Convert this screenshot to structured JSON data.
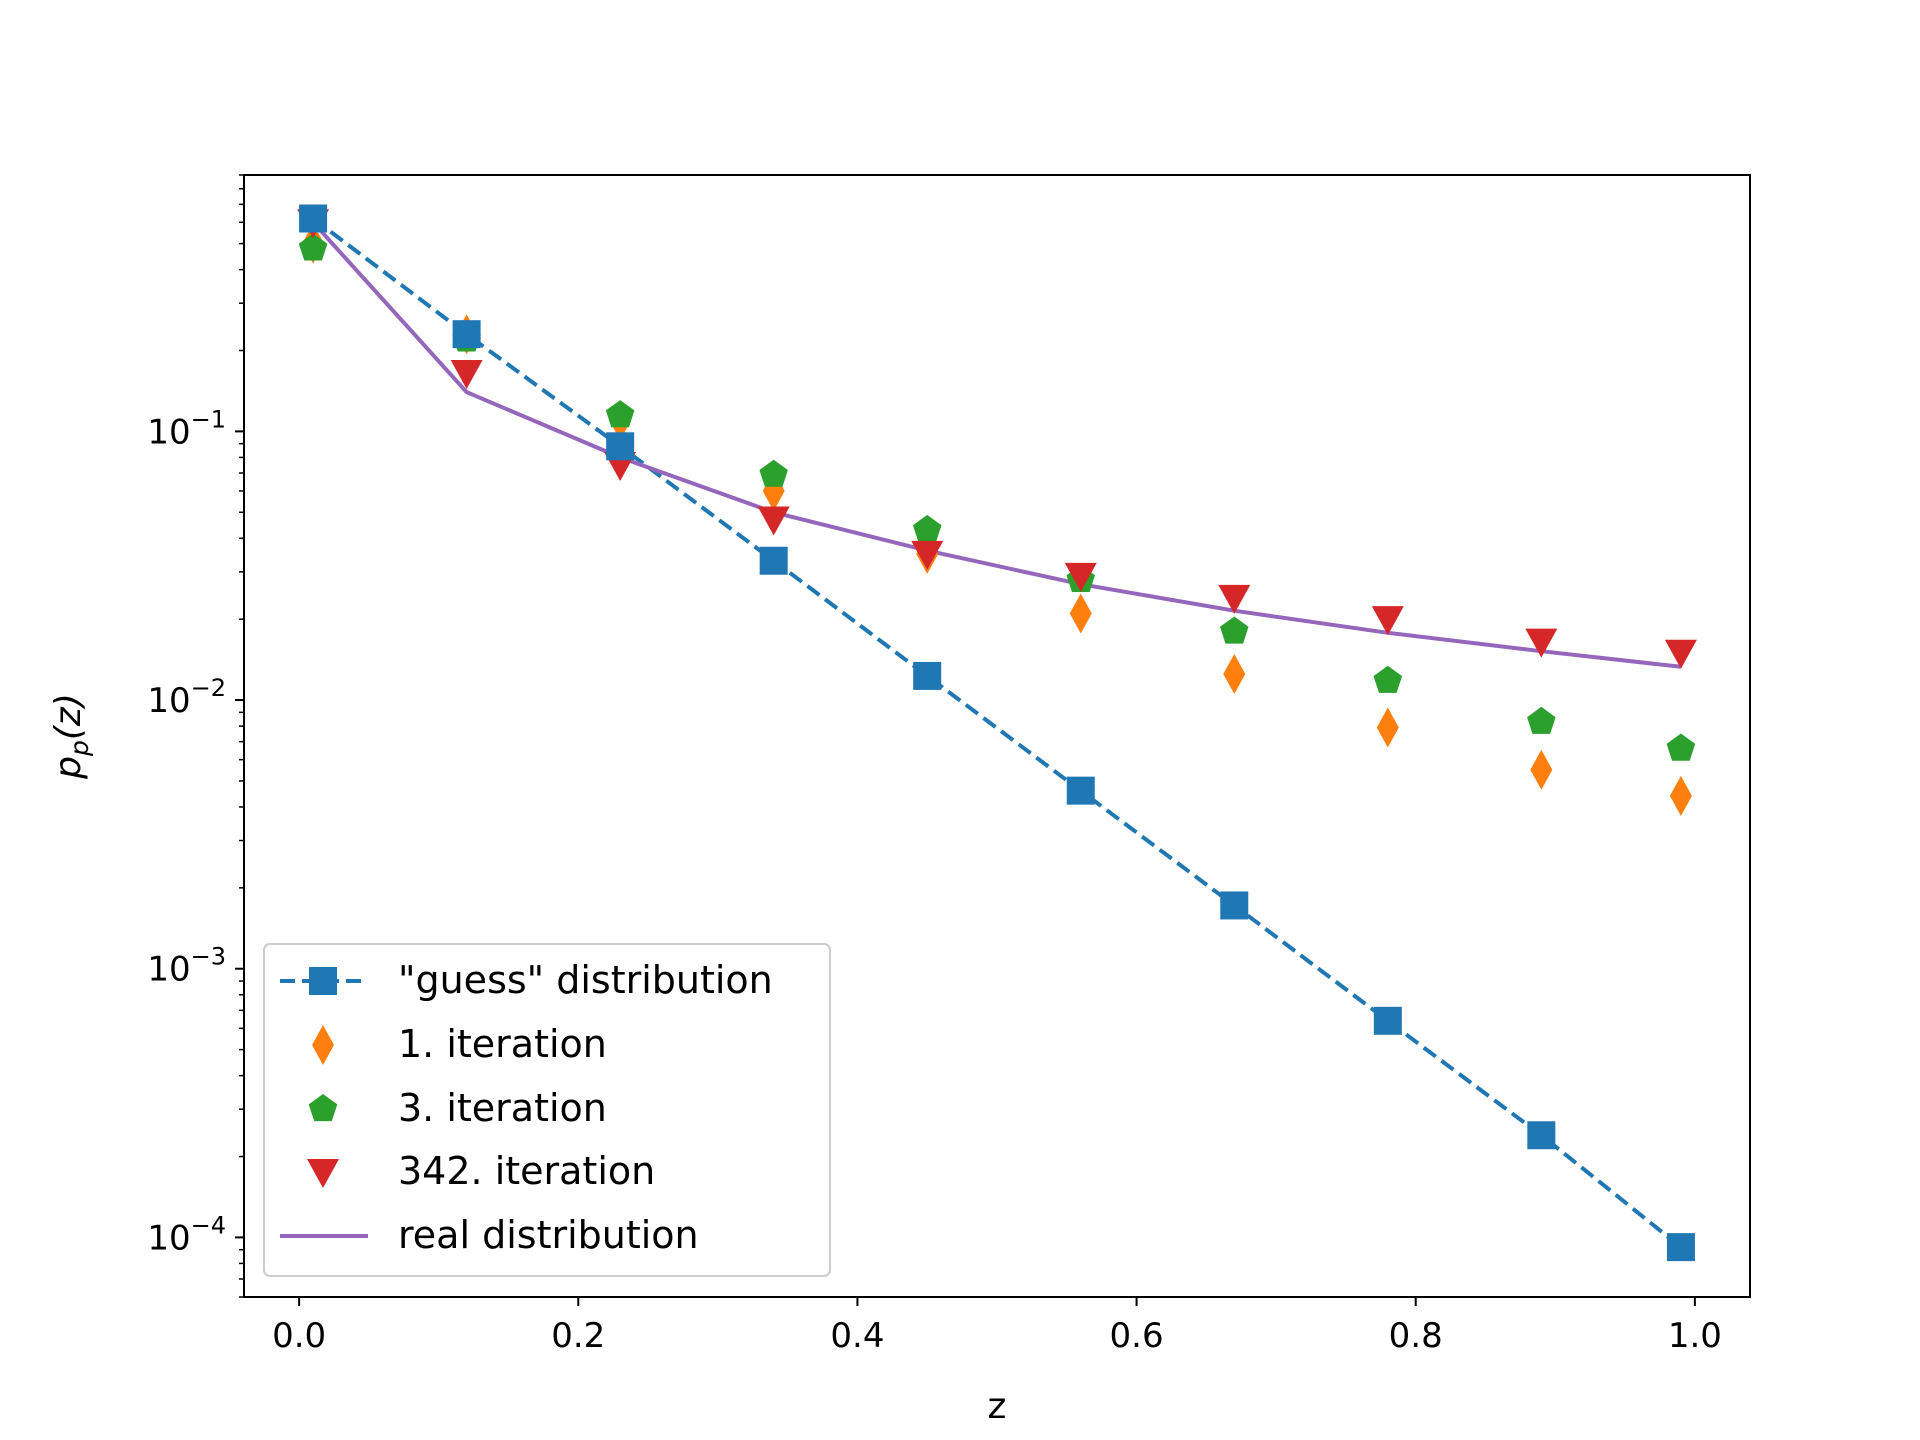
{
  "chart_data": {
    "type": "scatter",
    "xlabel": "z",
    "ylabel": "p_p(z)",
    "ylabel_main": "p",
    "ylabel_sub": "p",
    "ylabel_arg": "(z)",
    "yscale": "log",
    "xlim": [
      -0.0395,
      1.0395
    ],
    "ylim": [
      6e-05,
      0.9
    ],
    "x_ticks": [
      {
        "value": 0.0,
        "label": "0.0"
      },
      {
        "value": 0.2,
        "label": "0.2"
      },
      {
        "value": 0.4,
        "label": "0.4"
      },
      {
        "value": 0.6,
        "label": "0.6"
      },
      {
        "value": 0.8,
        "label": "0.8"
      },
      {
        "value": 1.0,
        "label": "1.0"
      }
    ],
    "y_ticks": [
      {
        "value": 0.1,
        "base": "10",
        "exp": "−1"
      },
      {
        "value": 0.01,
        "base": "10",
        "exp": "−2"
      },
      {
        "value": 0.001,
        "base": "10",
        "exp": "−3"
      },
      {
        "value": 0.0001,
        "base": "10",
        "exp": "−4"
      }
    ],
    "x": [
      0.01,
      0.12,
      0.23,
      0.34,
      0.45,
      0.56,
      0.67,
      0.78,
      0.89,
      0.99
    ],
    "series": [
      {
        "name": "\"guess\" distribution",
        "color": "#1f77b4",
        "marker": "square",
        "line": "dashed",
        "values": [
          0.62,
          0.23,
          0.088,
          0.033,
          0.0123,
          0.0046,
          0.00172,
          0.00064,
          0.00024,
          9.2e-05
        ]
      },
      {
        "name": "1. iteration",
        "color": "#ff7f0e",
        "marker": "diamond",
        "line": "none",
        "values": [
          0.5,
          0.23,
          0.11,
          0.06,
          0.035,
          0.021,
          0.0125,
          0.0079,
          0.0055,
          0.0044
        ]
      },
      {
        "name": "3. iteration",
        "color": "#2ca02c",
        "marker": "pentagon",
        "line": "none",
        "values": [
          0.48,
          0.22,
          0.115,
          0.069,
          0.043,
          0.028,
          0.018,
          0.0118,
          0.0083,
          0.0066
        ]
      },
      {
        "name": "342. iteration",
        "color": "#d62728",
        "marker": "triangle-down",
        "line": "none",
        "values": [
          0.6,
          0.165,
          0.075,
          0.047,
          0.035,
          0.029,
          0.024,
          0.02,
          0.0165,
          0.015
        ]
      },
      {
        "name": "real distribution",
        "color": "#9467bd",
        "marker": "none",
        "line": "solid",
        "values": [
          0.6,
          0.14,
          0.08,
          0.05,
          0.036,
          0.027,
          0.0215,
          0.0178,
          0.0152,
          0.0133
        ]
      }
    ],
    "legend_position": "lower-left"
  }
}
